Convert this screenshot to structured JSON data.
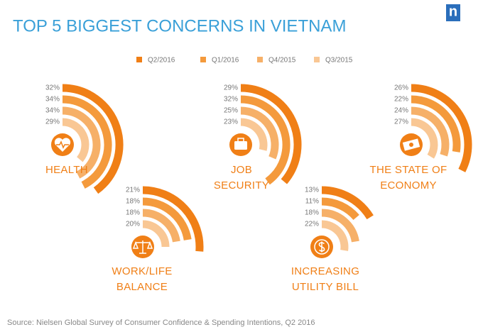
{
  "chart_data": {
    "type": "radial_bar",
    "title": "TOP 5 BIGGEST CONCERNS IN VIETNAM",
    "logo": "n",
    "source": "Source: Nielsen Global Survey of Consumer Confidence & Spending Intentions, Q2 2016",
    "categories": [
      "HEALTH",
      "JOB SECURITY",
      "THE STATE OF ECONOMY",
      "WORK/LIFE BALANCE",
      "INCREASING UTILITY BILL"
    ],
    "series": [
      {
        "name": "Q2/2016",
        "color": "#f07f16",
        "values": [
          32,
          29,
          26,
          21,
          13
        ],
        "value_labels": [
          "32%",
          "29%",
          "26%",
          "21%",
          "13%"
        ]
      },
      {
        "name": "Q1/2016",
        "color": "#f49a3c",
        "values": [
          34,
          32,
          22,
          18,
          11
        ],
        "value_labels": [
          "34%",
          "32%",
          "22%",
          "18%",
          "11%"
        ]
      },
      {
        "name": "Q4/2015",
        "color": "#f6b068",
        "values": [
          34,
          25,
          24,
          18,
          18
        ],
        "value_labels": [
          "34%",
          "25%",
          "24%",
          "18%",
          "18%"
        ]
      },
      {
        "name": "Q3/2015",
        "color": "#f9c794",
        "values": [
          29,
          23,
          27,
          20,
          22
        ],
        "value_labels": [
          "29%",
          "23%",
          "27%",
          "20%",
          "22%"
        ]
      }
    ]
  }
}
